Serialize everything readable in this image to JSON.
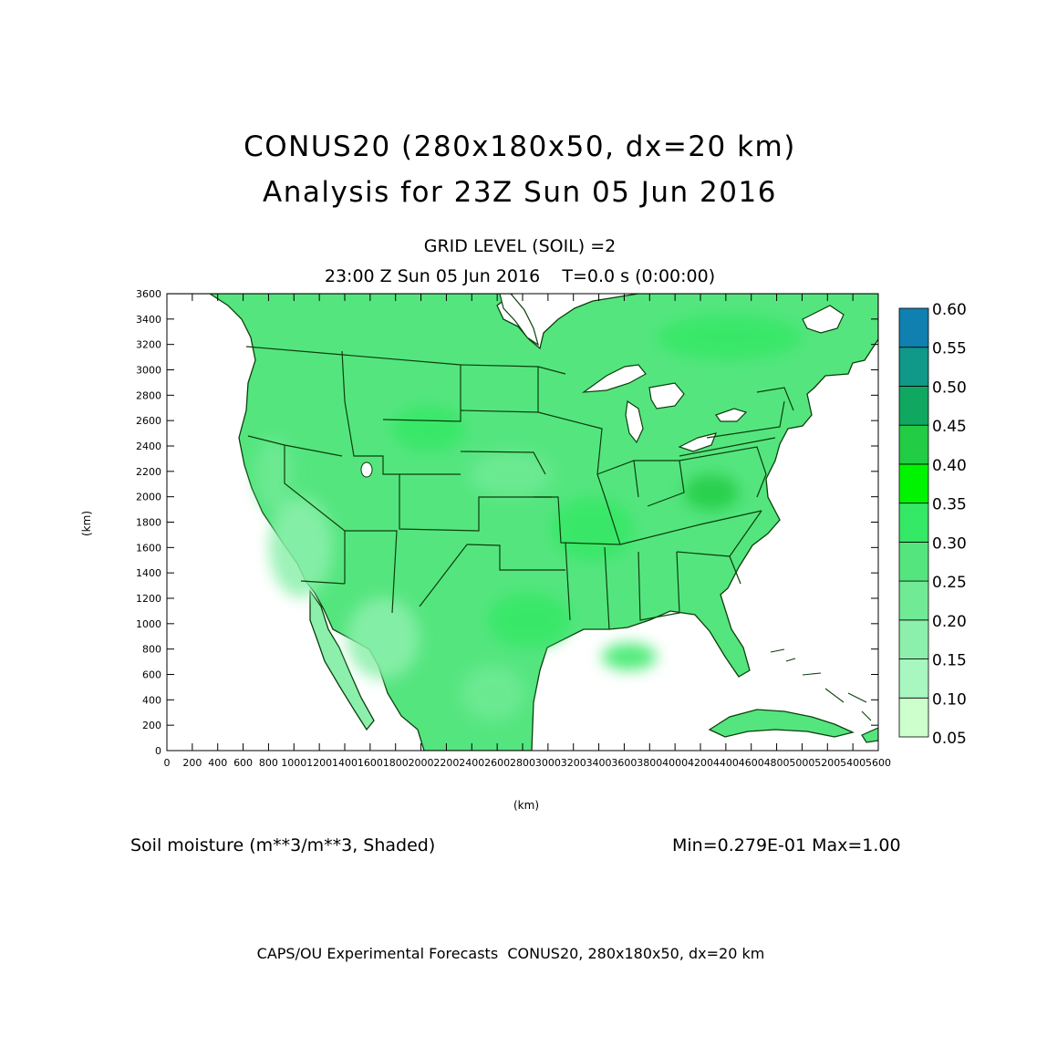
{
  "title": {
    "line1": "CONUS20 (280x180x50, dx=20 km)",
    "line2": "Analysis for 23Z Sun 05 Jun 2016"
  },
  "subtitle": {
    "line1": "GRID LEVEL (SOIL) =2",
    "line2": "23:00 Z Sun 05 Jun 2016    T=0.0 s (0:00:00)"
  },
  "variable_label": "Soil moisture (m**3/m**3, Shaded)",
  "minmax_label": "Min=0.279E-01 Max=1.00",
  "footer": "CAPS/OU Experimental Forecasts  CONUS20, 280x180x50, dx=20 km",
  "axes": {
    "x_label": "(km)",
    "y_label": "(km)",
    "x_ticks": [
      "0",
      "200",
      "400",
      "600",
      "800",
      "1000",
      "1200",
      "1400",
      "1600",
      "1800",
      "2000",
      "2200",
      "2400",
      "2600",
      "2800",
      "3000",
      "3200",
      "3400",
      "3600",
      "3800",
      "4000",
      "4200",
      "4400",
      "4600",
      "4800",
      "5000",
      "5200",
      "5400",
      "5600"
    ],
    "y_ticks": [
      "0",
      "200",
      "400",
      "600",
      "800",
      "1000",
      "1200",
      "1400",
      "1600",
      "1800",
      "2000",
      "2200",
      "2400",
      "2600",
      "2800",
      "3000",
      "3200",
      "3400",
      "3600"
    ],
    "x_range": [
      0,
      5600
    ],
    "y_range": [
      0,
      3600
    ]
  },
  "colorbar": {
    "levels": [
      "0.05",
      "0.10",
      "0.15",
      "0.20",
      "0.25",
      "0.30",
      "0.35",
      "0.40",
      "0.45",
      "0.50",
      "0.55",
      "0.60"
    ],
    "colors": [
      "#ccffcc",
      "#a8f7c0",
      "#8cf0ac",
      "#70ea95",
      "#55e57f",
      "#35e865",
      "#00f400",
      "#22cc44",
      "#10a860",
      "#109888",
      "#1080b0",
      "#1060f0"
    ]
  },
  "colors": {
    "land_base": "#55e57f",
    "land_wet": "#35e865",
    "land_dry": "#8cf0ac",
    "boundary": "#0b3f0b"
  }
}
